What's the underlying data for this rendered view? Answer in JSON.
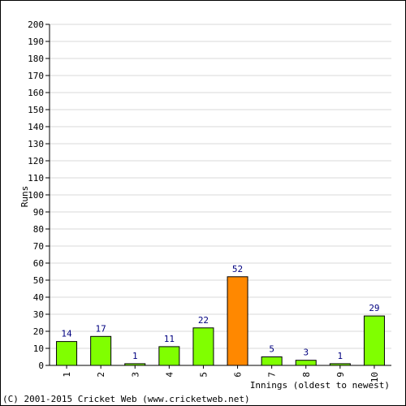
{
  "chart_data": {
    "type": "bar",
    "title": "",
    "xlabel": "Innings (oldest to newest)",
    "ylabel": "Runs",
    "ylim": [
      0,
      200
    ],
    "ytick_step": 10,
    "grid": true,
    "categories": [
      "1",
      "2",
      "3",
      "4",
      "5",
      "6",
      "7",
      "8",
      "9",
      "10"
    ],
    "values": [
      14,
      17,
      1,
      11,
      22,
      52,
      5,
      3,
      1,
      29
    ],
    "highlight_index": 5,
    "colors": {
      "bar": "#80ff00",
      "highlight": "#ff8800",
      "data_label": "#000080",
      "grid": "#d8d8d8"
    }
  },
  "footer": {
    "copyright": "(C) 2001-2015 Cricket Web (www.cricketweb.net)"
  }
}
